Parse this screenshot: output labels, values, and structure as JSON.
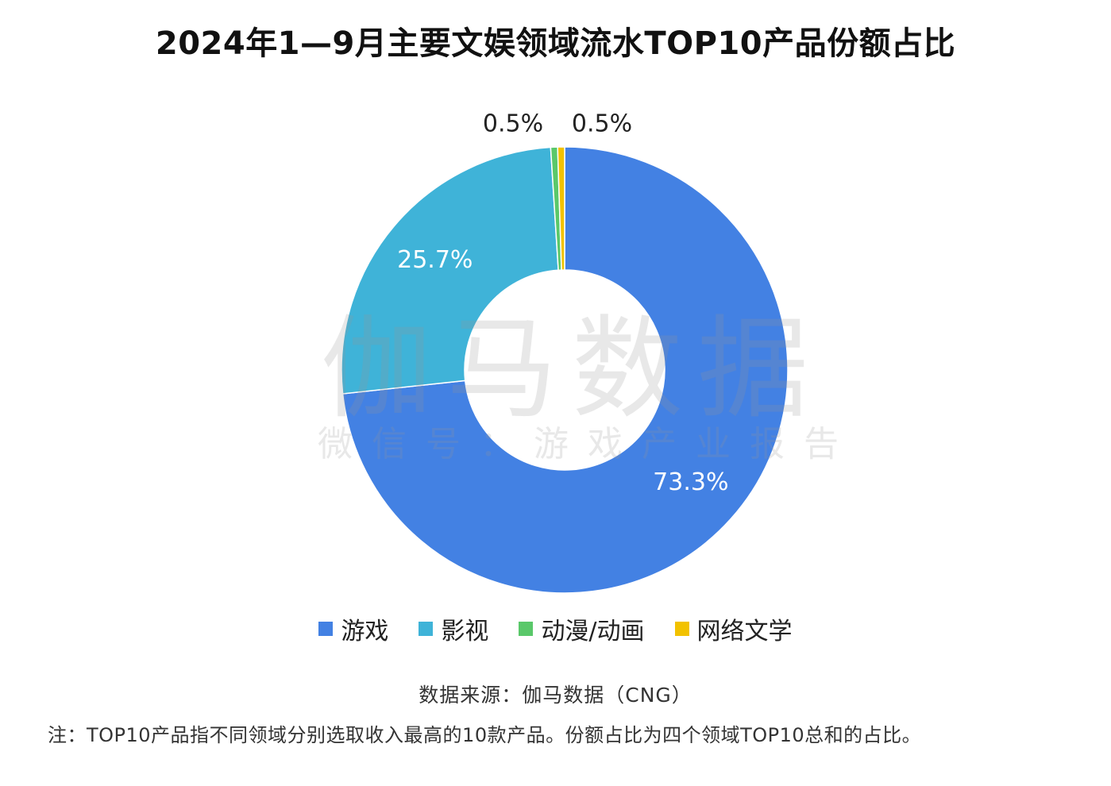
{
  "chart_data": {
    "type": "pie",
    "variant": "donut",
    "title": "2024年1—9月主要文娱领域流水TOP10产品份额占比",
    "series": [
      {
        "name": "游戏",
        "value": 73.3,
        "label": "73.3%",
        "color": "#4381e3"
      },
      {
        "name": "影视",
        "value": 25.7,
        "label": "25.7%",
        "color": "#3fb3d8"
      },
      {
        "name": "动漫/动画",
        "value": 0.5,
        "label": "0.5%",
        "color": "#5ac86a"
      },
      {
        "name": "网络文学",
        "value": 0.5,
        "label": "0.5%",
        "color": "#f2c200"
      }
    ],
    "legend_position": "bottom"
  },
  "watermark": {
    "main": "伽马数据",
    "sub": "微信号：游戏产业报告"
  },
  "source_text": "数据来源：伽马数据（CNG）",
  "note_text": "注：TOP10产品指不同领域分别选取收入最高的10款产品。份额占比为四个领域TOP10总和的占比。"
}
